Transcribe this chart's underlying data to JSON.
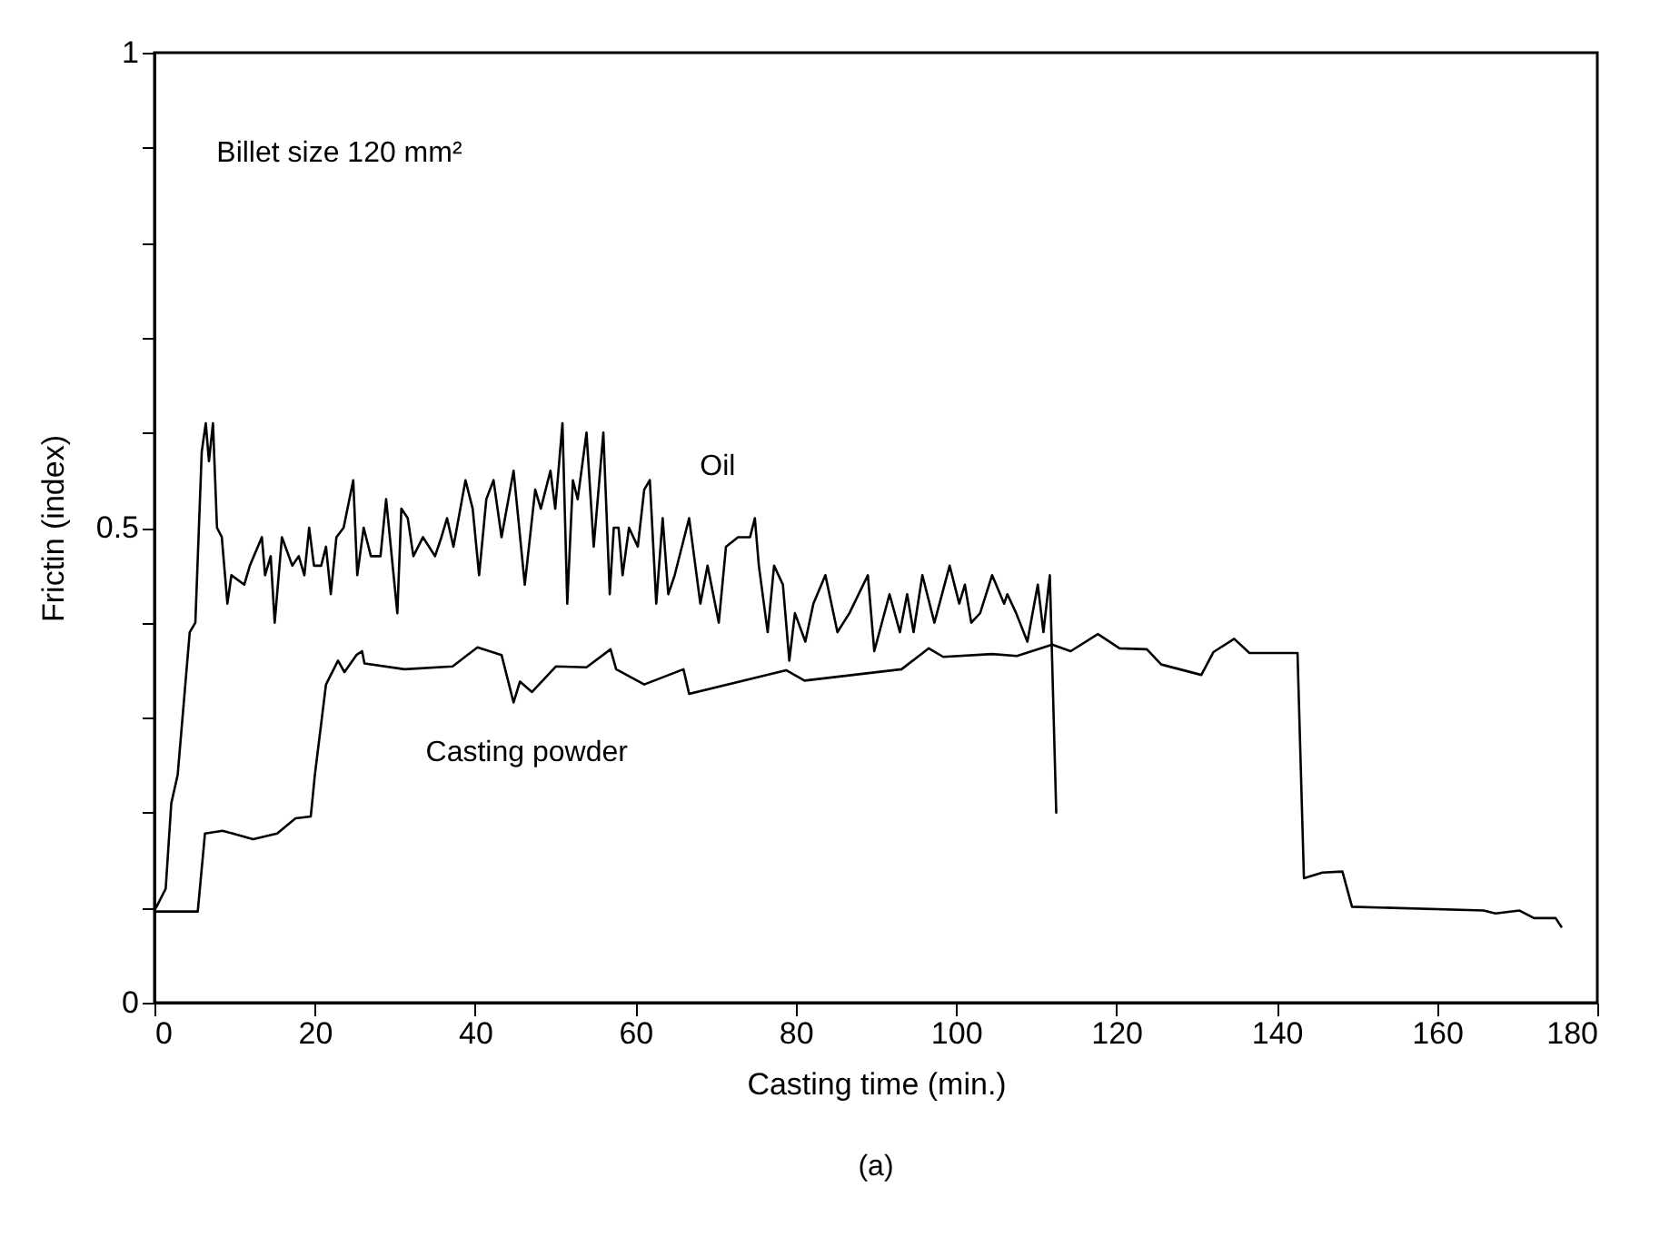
{
  "chart_data": {
    "type": "line",
    "xlabel": "Casting time (min.)",
    "ylabel": "Frictin (index)",
    "xlim": [
      0,
      180
    ],
    "xticks": [
      0,
      20,
      40,
      60,
      80,
      100,
      120,
      140,
      160,
      180
    ],
    "ylim": [
      0,
      1
    ],
    "yticks": [
      0,
      {
        "value": 0.1,
        "label": null
      },
      {
        "value": 0.2,
        "label": null
      },
      {
        "value": 0.3,
        "label": null
      },
      {
        "value": 0.4,
        "label": null
      },
      0.5,
      {
        "value": 0.6,
        "label": null
      },
      {
        "value": 0.7,
        "label": null
      },
      {
        "value": 0.8,
        "label": null
      },
      {
        "value": 0.9,
        "label": null
      },
      1
    ],
    "grid": false,
    "marker": "none",
    "line_style": "solid",
    "annotations": [
      "Billet size 120 mm²",
      "(a)"
    ],
    "series": [
      {
        "name": "Oil",
        "color": "#000000",
        "x": [
          0.2,
          1.4,
          2.1,
          2.9,
          4.4,
          5.1,
          5.9,
          6.4,
          6.8,
          7.3,
          7.8,
          8.4,
          9.1,
          9.6,
          11.2,
          11.9,
          13.4,
          13.8,
          14.5,
          15.0,
          15.9,
          17.2,
          18.0,
          18.7,
          19.3,
          19.9,
          20.8,
          21.4,
          22.0,
          22.7,
          23.6,
          24.8,
          25.3,
          26.1,
          27.0,
          28.2,
          28.9,
          30.3,
          30.8,
          31.6,
          32.3,
          33.5,
          35.0,
          35.8,
          36.5,
          37.3,
          38.8,
          39.7,
          40.5,
          41.4,
          42.3,
          43.3,
          44.8,
          46.2,
          47.5,
          48.2,
          49.4,
          50.0,
          50.9,
          51.5,
          52.2,
          52.8,
          53.9,
          54.8,
          56.0,
          56.8,
          57.3,
          57.9,
          58.4,
          59.2,
          60.3,
          61.1,
          61.8,
          62.6,
          63.4,
          64.1,
          64.9,
          66.7,
          68.1,
          69.0,
          70.4,
          71.3,
          72.8,
          74.3,
          74.9,
          75.4,
          76.5,
          77.3,
          78.4,
          79.2,
          79.9,
          81.2,
          82.2,
          83.7,
          85.2,
          86.7,
          89.0,
          89.8,
          91.7,
          93.0,
          93.9,
          94.7,
          95.8,
          97.3,
          99.2,
          100.4,
          101.1,
          101.9,
          103.0,
          104.5,
          106.0,
          106.4,
          107.5,
          108.9,
          110.2,
          110.9,
          111.7,
          112.5
        ],
        "values": [
          0.1,
          0.12,
          0.21,
          0.24,
          0.39,
          0.4,
          0.58,
          0.61,
          0.57,
          0.61,
          0.5,
          0.49,
          0.42,
          0.45,
          0.44,
          0.46,
          0.49,
          0.45,
          0.47,
          0.4,
          0.49,
          0.46,
          0.47,
          0.45,
          0.5,
          0.46,
          0.46,
          0.48,
          0.43,
          0.49,
          0.5,
          0.55,
          0.45,
          0.5,
          0.47,
          0.47,
          0.53,
          0.41,
          0.52,
          0.51,
          0.47,
          0.49,
          0.47,
          0.49,
          0.51,
          0.48,
          0.55,
          0.52,
          0.45,
          0.53,
          0.55,
          0.49,
          0.56,
          0.44,
          0.54,
          0.52,
          0.56,
          0.52,
          0.61,
          0.42,
          0.55,
          0.53,
          0.6,
          0.48,
          0.6,
          0.43,
          0.5,
          0.5,
          0.45,
          0.5,
          0.48,
          0.54,
          0.55,
          0.42,
          0.51,
          0.43,
          0.45,
          0.51,
          0.42,
          0.46,
          0.4,
          0.48,
          0.49,
          0.49,
          0.51,
          0.46,
          0.39,
          0.46,
          0.44,
          0.36,
          0.41,
          0.38,
          0.42,
          0.45,
          0.39,
          0.41,
          0.45,
          0.37,
          0.43,
          0.39,
          0.43,
          0.39,
          0.45,
          0.4,
          0.46,
          0.42,
          0.44,
          0.4,
          0.41,
          0.45,
          0.42,
          0.43,
          0.41,
          0.38,
          0.44,
          0.39,
          0.45,
          0.2
        ]
      },
      {
        "name": "Casting powder",
        "color": "#000000",
        "x": [
          0.2,
          5.4,
          6.3,
          8.5,
          12.3,
          15.3,
          17.6,
          19.5,
          20.0,
          21.4,
          22.9,
          23.7,
          25.2,
          25.9,
          26.2,
          31.2,
          37.2,
          40.3,
          43.3,
          44.8,
          45.6,
          47.1,
          50.1,
          53.9,
          56.9,
          57.6,
          61.1,
          66.0,
          66.7,
          78.8,
          81.1,
          93.2,
          96.6,
          98.4,
          104.5,
          107.6,
          112.0,
          114.3,
          117.7,
          120.4,
          123.8,
          125.6,
          130.6,
          132.1,
          134.7,
          136.6,
          142.6,
          143.4,
          145.7,
          148.2,
          149.4,
          165.8,
          167.3,
          170.3,
          172.1,
          174.8,
          175.5
        ],
        "values": [
          0.096,
          0.096,
          0.178,
          0.181,
          0.172,
          0.178,
          0.194,
          0.196,
          0.239,
          0.335,
          0.36,
          0.348,
          0.366,
          0.37,
          0.357,
          0.351,
          0.354,
          0.374,
          0.366,
          0.316,
          0.338,
          0.327,
          0.354,
          0.353,
          0.372,
          0.351,
          0.335,
          0.351,
          0.325,
          0.35,
          0.339,
          0.351,
          0.373,
          0.364,
          0.367,
          0.365,
          0.377,
          0.37,
          0.388,
          0.373,
          0.372,
          0.356,
          0.345,
          0.369,
          0.383,
          0.368,
          0.368,
          0.131,
          0.137,
          0.138,
          0.101,
          0.097,
          0.094,
          0.097,
          0.089,
          0.089,
          0.08
        ]
      }
    ]
  }
}
